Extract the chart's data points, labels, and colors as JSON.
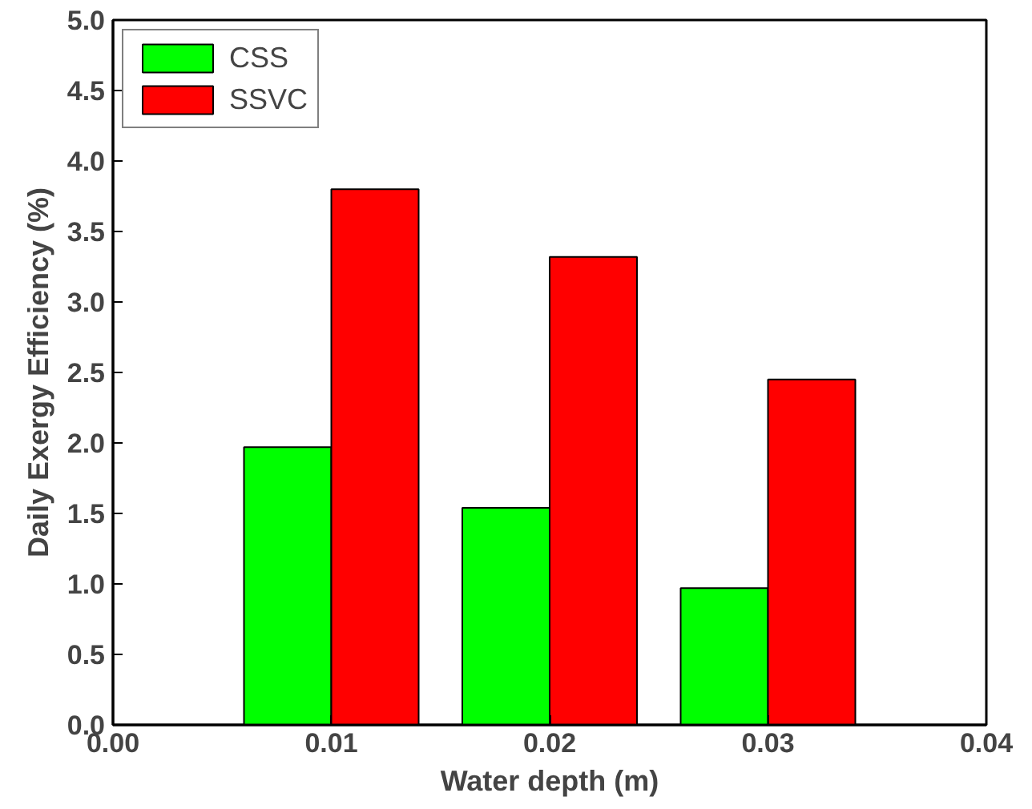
{
  "chart_data": {
    "type": "bar",
    "xlabel": "Water depth (m)",
    "ylabel": "Daily Exergy Efficiency (%)",
    "x": [
      0.01,
      0.02,
      0.03
    ],
    "series": [
      {
        "name": "CSS",
        "color": "#00ff00",
        "values": [
          1.97,
          1.54,
          0.97
        ]
      },
      {
        "name": "SSVC",
        "color": "#ff0000",
        "values": [
          3.8,
          3.32,
          2.45
        ]
      }
    ],
    "xlim": [
      0.0,
      0.04
    ],
    "ylim": [
      0.0,
      5.0
    ],
    "xticks": [
      {
        "value": 0.0,
        "label": "0.00"
      },
      {
        "value": 0.01,
        "label": "0.01"
      },
      {
        "value": 0.02,
        "label": "0.02"
      },
      {
        "value": 0.03,
        "label": "0.03"
      },
      {
        "value": 0.04,
        "label": "0.04"
      }
    ],
    "yticks": [
      {
        "value": 0.0,
        "label": "0.0"
      },
      {
        "value": 0.5,
        "label": "0.5"
      },
      {
        "value": 1.0,
        "label": "1.0"
      },
      {
        "value": 1.5,
        "label": "1.5"
      },
      {
        "value": 2.0,
        "label": "2.0"
      },
      {
        "value": 2.5,
        "label": "2.5"
      },
      {
        "value": 3.0,
        "label": "3.0"
      },
      {
        "value": 3.5,
        "label": "3.5"
      },
      {
        "value": 4.0,
        "label": "4.0"
      },
      {
        "value": 4.5,
        "label": "4.5"
      },
      {
        "value": 5.0,
        "label": "5.0"
      }
    ],
    "grid": false,
    "legend": "top left"
  }
}
